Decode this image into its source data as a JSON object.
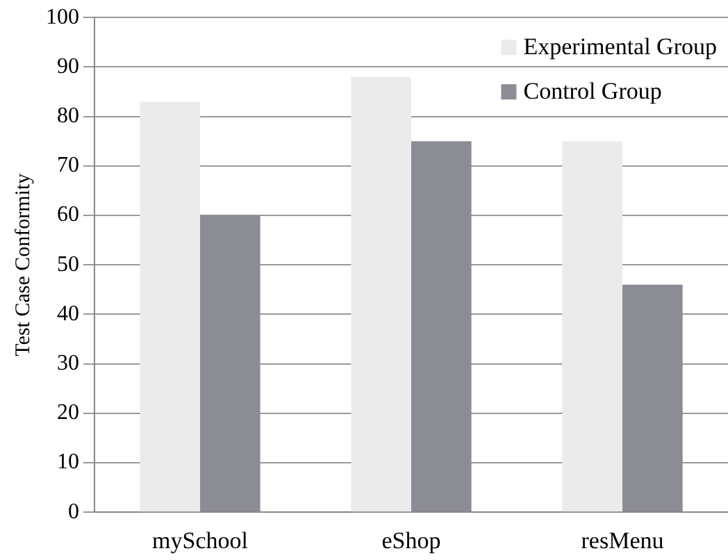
{
  "chart_data": {
    "type": "bar",
    "ylabel": "Test Case Conformity",
    "categories": [
      "mySchool",
      "eShop",
      "resMenu"
    ],
    "series": [
      {
        "name": "Experimental Group",
        "color": "#ebebeb",
        "values": [
          83,
          88,
          75
        ]
      },
      {
        "name": "Control Group",
        "color": "#8c8c94",
        "values": [
          60,
          75,
          46
        ]
      }
    ],
    "ylim": [
      0,
      100
    ],
    "yticks": [
      0,
      10,
      20,
      30,
      40,
      50,
      60,
      70,
      80,
      90,
      100
    ],
    "grid": "y",
    "legend": "top right"
  }
}
